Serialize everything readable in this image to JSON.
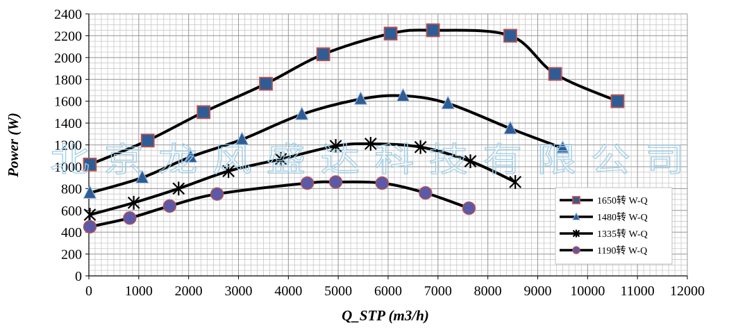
{
  "chart_data": {
    "type": "line",
    "xlabel": "Q_STP (m3/h)",
    "ylabel": "Power (W)",
    "xlim": [
      0,
      12000
    ],
    "ylim": [
      0,
      2400
    ],
    "x_ticks": [
      "0",
      "1000",
      "2000",
      "3000",
      "4000",
      "5000",
      "6000",
      "7000",
      "8000",
      "9000",
      "10000",
      "11000",
      "12000"
    ],
    "y_ticks": [
      "0",
      "200",
      "400",
      "600",
      "800",
      "1000",
      "1200",
      "1400",
      "1600",
      "1800",
      "2000",
      "2200",
      "2400"
    ],
    "grid": "on",
    "legend_position": "bottom-right",
    "watermark": "北京龙风盛达科技有限公司",
    "series": [
      {
        "name": "1650转 W-Q",
        "marker": "square",
        "marker_fill": "#2e5d95",
        "marker_edge": "#c0504d",
        "x": [
          20,
          1180,
          2300,
          3550,
          4700,
          6050,
          6900,
          8450,
          9350,
          10600
        ],
        "y": [
          1020,
          1240,
          1500,
          1760,
          2030,
          2220,
          2250,
          2200,
          1850,
          1600
        ]
      },
      {
        "name": "1480转 W-Q",
        "marker": "triangle",
        "marker_fill": "#2e5d95",
        "marker_edge": "#2e5d95",
        "x": [
          20,
          1070,
          2040,
          3070,
          4270,
          5450,
          6300,
          7200,
          8450,
          9500
        ],
        "y": [
          760,
          900,
          1090,
          1250,
          1480,
          1620,
          1650,
          1580,
          1350,
          1170
        ]
      },
      {
        "name": "1335转 W-Q",
        "marker": "asterisk",
        "marker_fill": "#000000",
        "marker_edge": "#000000",
        "x": [
          20,
          900,
          1800,
          2800,
          3850,
          4950,
          5650,
          6650,
          7650,
          8550
        ],
        "y": [
          560,
          670,
          800,
          960,
          1070,
          1190,
          1210,
          1180,
          1050,
          860
        ]
      },
      {
        "name": "1190转 W-Q",
        "marker": "circle",
        "marker_fill": "#5a5aa8",
        "marker_edge": "#c0504d",
        "x": [
          20,
          820,
          1620,
          2570,
          4380,
          4950,
          5880,
          6750,
          7620
        ],
        "y": [
          450,
          530,
          640,
          750,
          850,
          860,
          850,
          760,
          620
        ]
      }
    ]
  }
}
